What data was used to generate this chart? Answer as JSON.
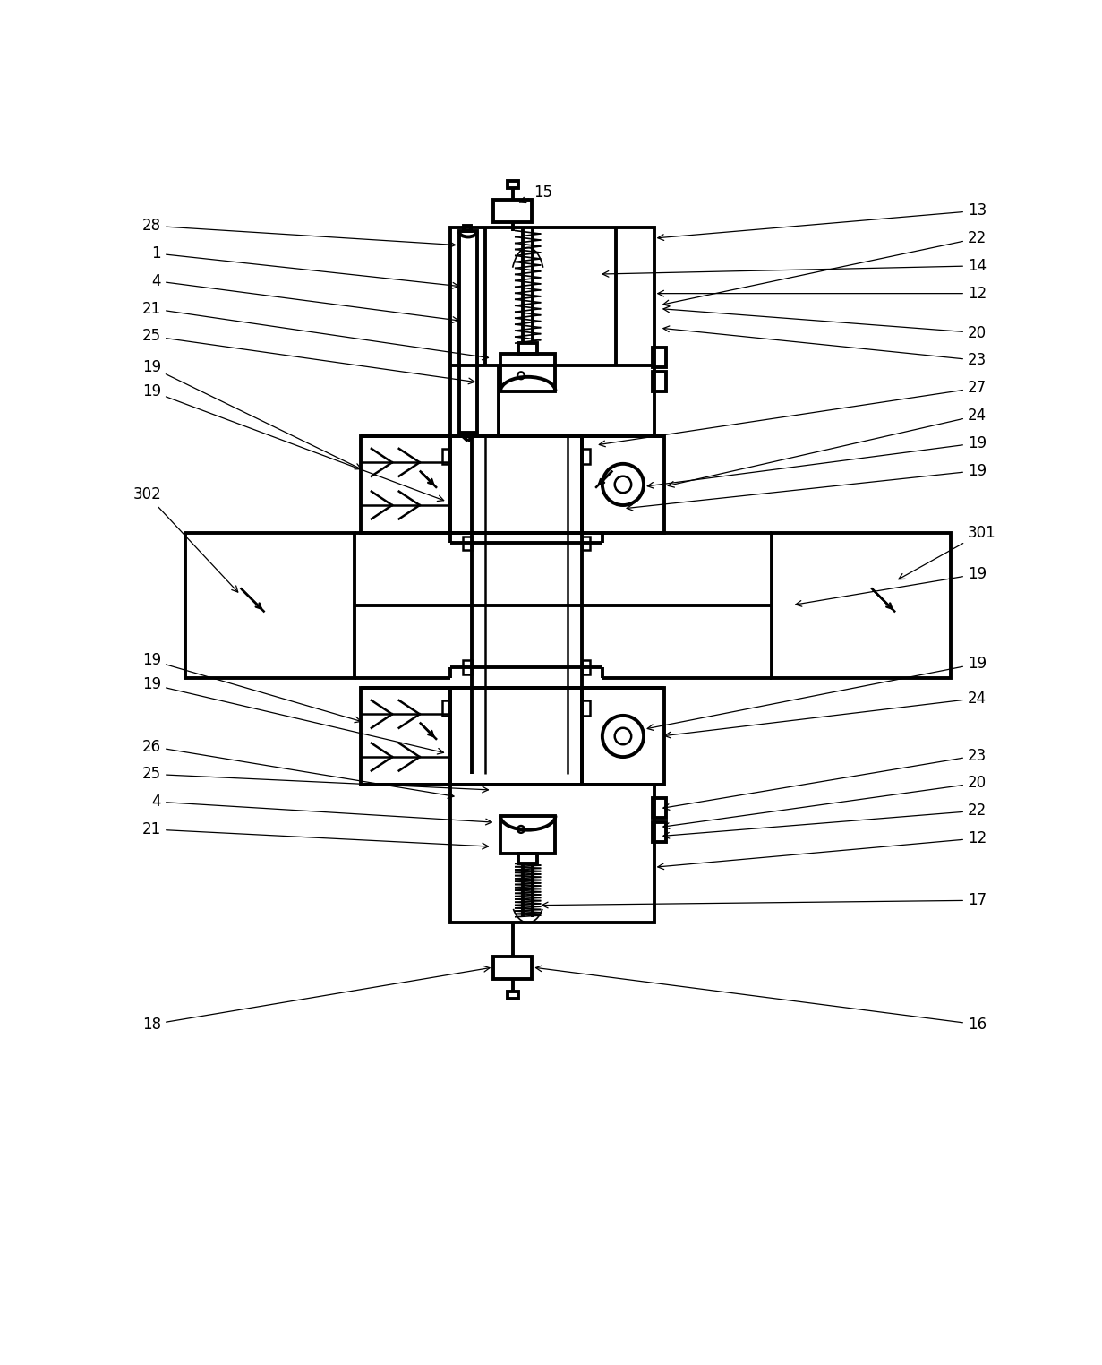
{
  "bg_color": "#ffffff",
  "line_color": "#000000",
  "lw": 1.8,
  "lw2": 2.8,
  "lw3": 1.2
}
